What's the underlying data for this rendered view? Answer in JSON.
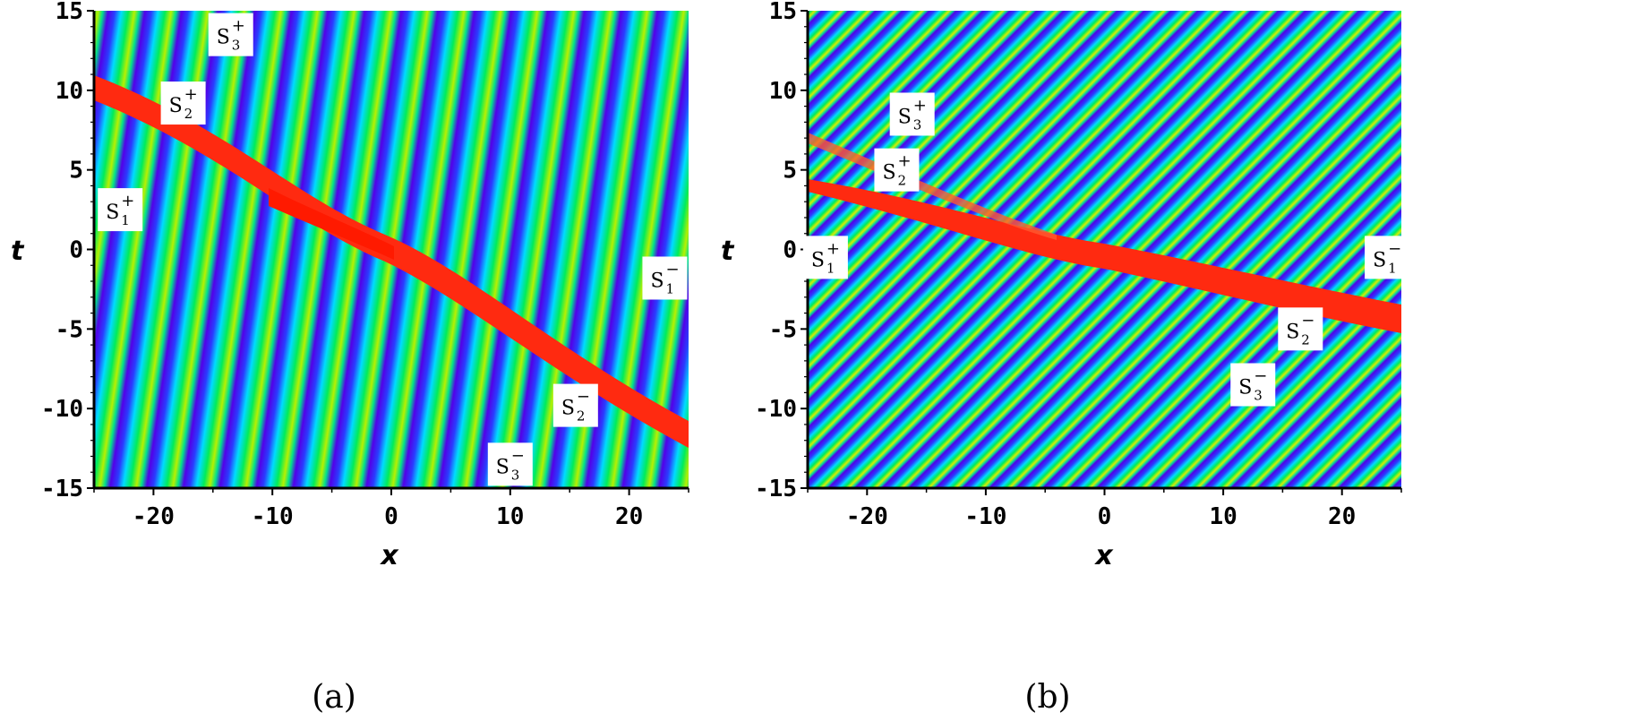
{
  "chart_data": [
    {
      "type": "heatmap",
      "panel": "a",
      "caption": "(a)",
      "xlabel": "x",
      "ylabel": "t",
      "xlim": [
        -25,
        25
      ],
      "ylim": [
        -15,
        15
      ],
      "xticks": [
        "-20",
        "-10",
        "0",
        "10",
        "20"
      ],
      "xtick_values": [
        -20,
        -10,
        0,
        10,
        20
      ],
      "yticks": [
        "15",
        "10",
        "5",
        "0",
        "-5",
        "-10",
        "-15"
      ],
      "ytick_values": [
        15,
        10,
        5,
        0,
        -5,
        -10,
        -15
      ],
      "colormap": [
        "#5500ee",
        "#0044ff",
        "#00ddff",
        "#00ee66",
        "#ffee00",
        "#ff2200"
      ],
      "annotations": [
        {
          "base": "S",
          "sup": "+",
          "sub": "1",
          "x": -22.8,
          "t": 2.5
        },
        {
          "base": "S",
          "sup": "+",
          "sub": "2",
          "x": -17.5,
          "t": 9.2
        },
        {
          "base": "S",
          "sup": "+",
          "sub": "3",
          "x": -13.5,
          "t": 13.5
        },
        {
          "base": "S",
          "sup": "−",
          "sub": "1",
          "x": 23.0,
          "t": -1.8
        },
        {
          "base": "S",
          "sup": "−",
          "sub": "2",
          "x": 15.5,
          "t": -9.8
        },
        {
          "base": "S",
          "sup": "−",
          "sub": "3",
          "x": 10.0,
          "t": -13.5
        }
      ]
    },
    {
      "type": "heatmap",
      "panel": "b",
      "caption": "(b)",
      "xlabel": "x",
      "ylabel": "t",
      "xlim": [
        -25,
        25
      ],
      "ylim": [
        -15,
        15
      ],
      "xticks": [
        "-20",
        "-10",
        "0",
        "10",
        "20"
      ],
      "xtick_values": [
        -20,
        -10,
        0,
        10,
        20
      ],
      "yticks": [
        "15",
        "10",
        "5",
        "0",
        "-5",
        "-10",
        "-15"
      ],
      "ytick_values": [
        15,
        10,
        5,
        0,
        -5,
        -10,
        -15
      ],
      "colormap": [
        "#5500ee",
        "#0044ff",
        "#00ddff",
        "#00ee66",
        "#ffee00",
        "#ff2200"
      ],
      "annotations": [
        {
          "base": "S",
          "sup": "+",
          "sub": "1",
          "x": -23.5,
          "t": -0.5
        },
        {
          "base": "S",
          "sup": "+",
          "sub": "2",
          "x": -17.5,
          "t": 5.0
        },
        {
          "base": "S",
          "sup": "+",
          "sub": "3",
          "x": -16.2,
          "t": 8.5
        },
        {
          "base": "S",
          "sup": "−",
          "sub": "1",
          "x": 23.8,
          "t": -0.5
        },
        {
          "base": "S",
          "sup": "−",
          "sub": "2",
          "x": 16.5,
          "t": -5.0
        },
        {
          "base": "S",
          "sup": "−",
          "sub": "3",
          "x": 12.5,
          "t": -8.5
        }
      ]
    }
  ]
}
